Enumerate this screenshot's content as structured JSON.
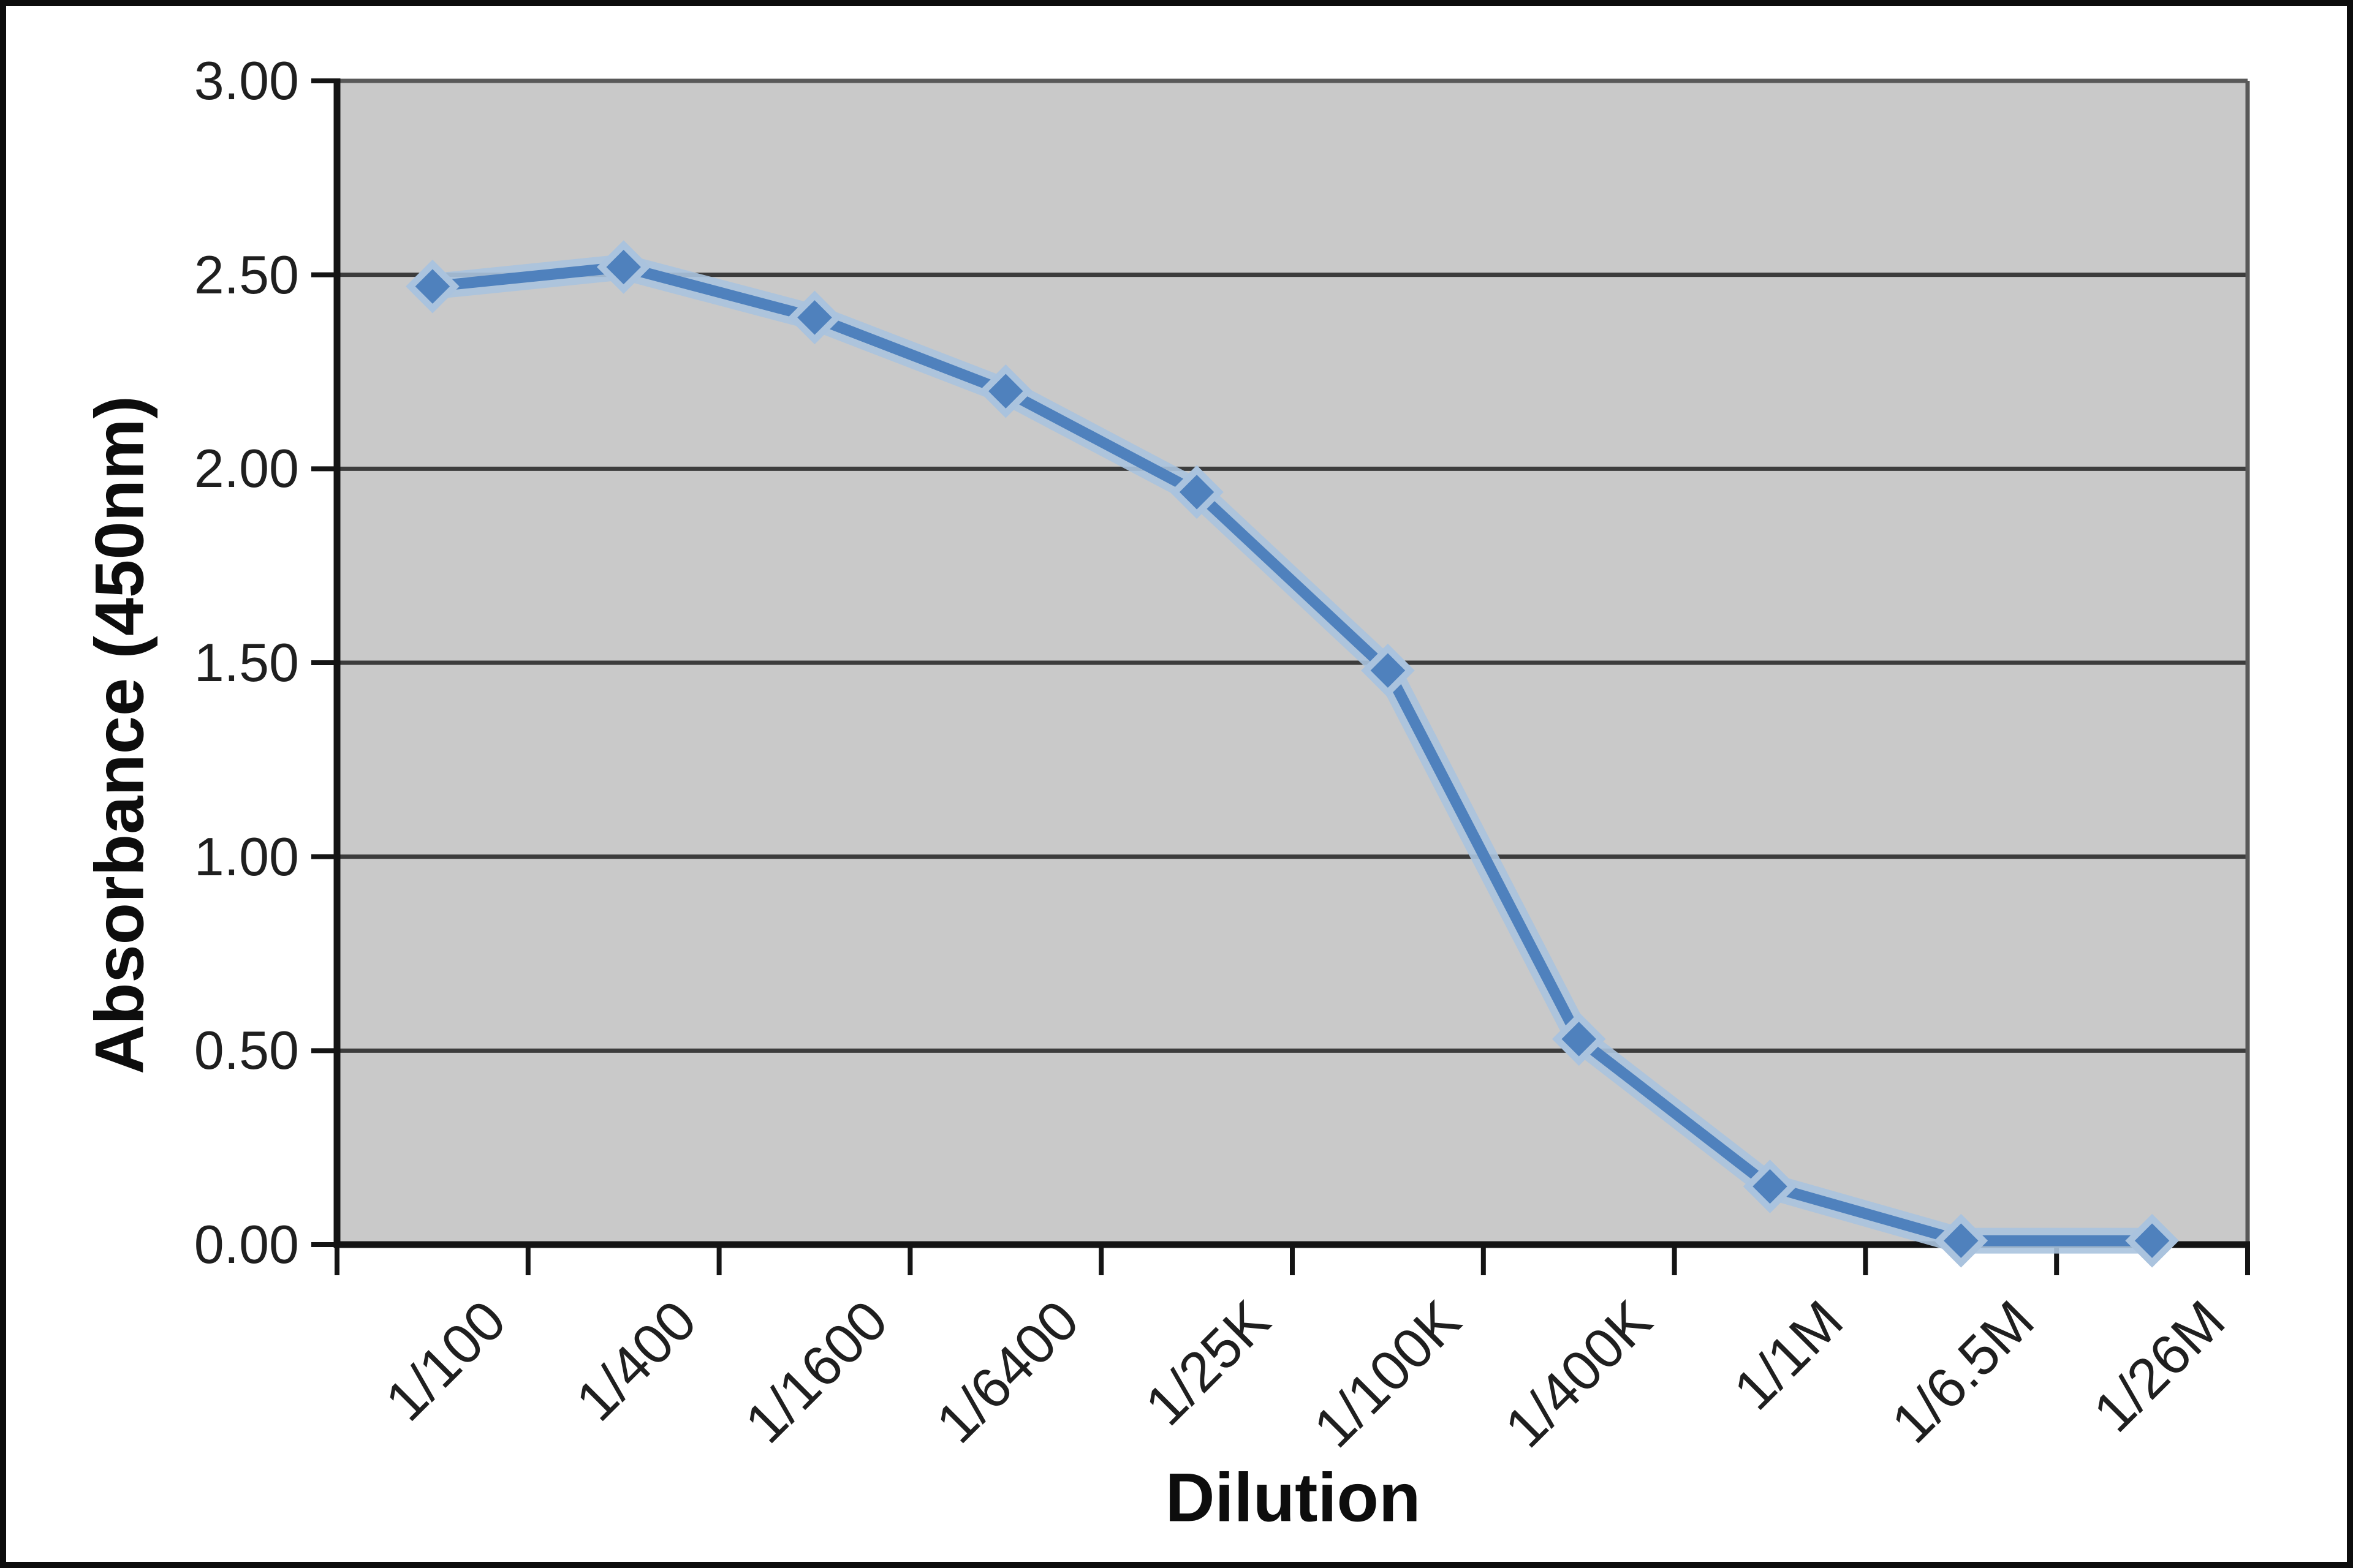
{
  "chart_data": {
    "type": "line",
    "title": "",
    "xlabel": "Dilution",
    "ylabel": "Absorbance (450nm)",
    "categories": [
      "1/100",
      "1/400",
      "1/1600",
      "1/6400",
      "1/25K",
      "1/100K",
      "1/400K",
      "1/1M",
      "1/6.5M",
      "1/26M"
    ],
    "series": [
      {
        "name": "Absorbance (450nm)",
        "values": [
          2.47,
          2.52,
          2.39,
          2.2,
          1.94,
          1.48,
          0.53,
          0.15,
          0.01,
          0.01
        ]
      }
    ],
    "y_ticks": [
      "3.00",
      "2.50",
      "2.00",
      "1.50",
      "1.00",
      "0.50",
      "0.00"
    ],
    "ylim": [
      0,
      3.0
    ],
    "y_tick_step": 0.5,
    "grid": "horizontal",
    "legend": "none",
    "marker": "diamond",
    "x_tick_rotation": 45
  },
  "colors": {
    "background": "#ffffff",
    "frame": "#0d0d0d",
    "plot_bg": "#c9c9c9",
    "plot_border": "#595959",
    "gridline": "#3c3c3c",
    "axis": "#141414",
    "line": "#4f81bd",
    "line_halo": "#aac3de",
    "text": "#1f1f1f"
  }
}
